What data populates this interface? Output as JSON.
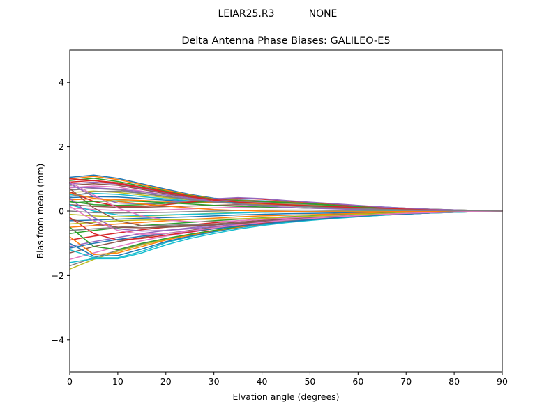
{
  "figure": {
    "suptitle_left": "LEIAR25.R3",
    "suptitle_right": "NONE"
  },
  "chart_data": {
    "type": "line",
    "title": "Delta Antenna Phase Biases: GALILEO-E5",
    "xlabel": "Elvation angle (degrees)",
    "ylabel": "Bias from mean (mm)",
    "xlim": [
      0,
      90
    ],
    "ylim": [
      -5,
      5
    ],
    "xticks": [
      0,
      10,
      20,
      30,
      40,
      50,
      60,
      70,
      80,
      90
    ],
    "yticks": [
      -4,
      -2,
      0,
      2,
      4
    ],
    "ytick_labels": [
      "−4",
      "−2",
      "0",
      "2",
      "4"
    ],
    "grid": false,
    "legend": "none",
    "colors": [
      "#1f77b4",
      "#ff7f0e",
      "#2ca02c",
      "#d62728",
      "#9467bd",
      "#8c564b",
      "#e377c2",
      "#7f7f7f",
      "#bcbd22",
      "#17becf"
    ],
    "x": [
      0,
      5,
      10,
      15,
      20,
      25,
      30,
      35,
      40,
      45,
      50,
      55,
      60,
      65,
      70,
      75,
      80,
      85,
      90
    ],
    "series": [
      {
        "values": [
          1.05,
          1.12,
          1.02,
          0.85,
          0.68,
          0.52,
          0.4,
          0.35,
          0.32,
          0.29,
          0.25,
          0.21,
          0.17,
          0.13,
          0.09,
          0.06,
          0.04,
          0.02,
          0.0
        ]
      },
      {
        "values": [
          1.0,
          1.08,
          0.98,
          0.82,
          0.65,
          0.5,
          0.38,
          0.34,
          0.31,
          0.28,
          0.24,
          0.2,
          0.16,
          0.12,
          0.09,
          0.06,
          0.04,
          0.02,
          0.0
        ]
      },
      {
        "values": [
          0.95,
          1.02,
          0.92,
          0.78,
          0.62,
          0.48,
          0.37,
          0.33,
          0.3,
          0.27,
          0.23,
          0.19,
          0.15,
          0.12,
          0.08,
          0.06,
          0.04,
          0.02,
          0.0
        ]
      },
      {
        "values": [
          0.9,
          0.95,
          0.88,
          0.74,
          0.6,
          0.46,
          0.36,
          0.32,
          0.29,
          0.26,
          0.22,
          0.18,
          0.15,
          0.11,
          0.08,
          0.05,
          0.03,
          0.02,
          0.0
        ]
      },
      {
        "values": [
          0.85,
          0.9,
          0.84,
          0.7,
          0.57,
          0.44,
          0.35,
          0.31,
          0.28,
          0.25,
          0.21,
          0.18,
          0.14,
          0.11,
          0.08,
          0.05,
          0.03,
          0.01,
          0.0
        ]
      },
      {
        "values": [
          0.8,
          0.85,
          0.8,
          0.67,
          0.54,
          0.42,
          0.33,
          0.3,
          0.27,
          0.24,
          0.21,
          0.17,
          0.14,
          0.1,
          0.07,
          0.05,
          0.03,
          0.01,
          0.0
        ]
      },
      {
        "values": [
          0.72,
          0.78,
          0.74,
          0.62,
          0.5,
          0.4,
          0.32,
          0.29,
          0.26,
          0.23,
          0.2,
          0.16,
          0.13,
          0.1,
          0.07,
          0.05,
          0.03,
          0.01,
          0.0
        ]
      },
      {
        "values": [
          0.65,
          0.7,
          0.66,
          0.56,
          0.46,
          0.37,
          0.3,
          0.28,
          0.25,
          0.22,
          0.19,
          0.16,
          0.13,
          0.09,
          0.07,
          0.04,
          0.03,
          0.01,
          0.0
        ]
      },
      {
        "values": [
          0.58,
          0.62,
          0.58,
          0.5,
          0.42,
          0.35,
          0.29,
          0.27,
          0.24,
          0.21,
          0.18,
          0.15,
          0.12,
          0.09,
          0.06,
          0.04,
          0.02,
          0.01,
          0.0
        ]
      },
      {
        "values": [
          0.5,
          0.55,
          0.52,
          0.45,
          0.38,
          0.32,
          0.28,
          0.26,
          0.23,
          0.2,
          0.17,
          0.14,
          0.11,
          0.08,
          0.06,
          0.04,
          0.02,
          0.01,
          0.0
        ]
      },
      {
        "values": [
          0.42,
          0.45,
          0.44,
          0.39,
          0.34,
          0.3,
          0.27,
          0.25,
          0.22,
          0.19,
          0.16,
          0.13,
          0.11,
          0.08,
          0.05,
          0.04,
          0.02,
          0.01,
          0.0
        ]
      },
      {
        "values": [
          0.35,
          0.38,
          0.36,
          0.33,
          0.3,
          0.28,
          0.26,
          0.24,
          0.21,
          0.18,
          0.15,
          0.13,
          0.1,
          0.08,
          0.05,
          0.03,
          0.02,
          0.01,
          0.0
        ]
      },
      {
        "values": [
          0.3,
          0.2,
          0.18,
          0.2,
          0.24,
          0.27,
          0.3,
          0.32,
          0.3,
          0.26,
          0.22,
          0.18,
          0.14,
          0.1,
          0.07,
          0.05,
          0.03,
          0.01,
          0.0
        ]
      },
      {
        "values": [
          0.6,
          0.3,
          0.15,
          0.15,
          0.2,
          0.28,
          0.36,
          0.4,
          0.37,
          0.32,
          0.27,
          0.22,
          0.17,
          0.12,
          0.08,
          0.05,
          0.03,
          0.01,
          0.0
        ]
      },
      {
        "values": [
          0.85,
          0.45,
          0.25,
          0.22,
          0.26,
          0.32,
          0.38,
          0.42,
          0.39,
          0.33,
          0.28,
          0.23,
          0.18,
          0.13,
          0.09,
          0.06,
          0.04,
          0.02,
          0.0
        ]
      },
      {
        "values": [
          0.2,
          0.15,
          0.12,
          0.12,
          0.14,
          0.16,
          0.18,
          0.2,
          0.19,
          0.17,
          0.14,
          0.12,
          0.09,
          0.07,
          0.05,
          0.03,
          0.02,
          0.01,
          0.0
        ]
      },
      {
        "values": [
          0.1,
          0.05,
          0.02,
          0.02,
          0.04,
          0.07,
          0.1,
          0.12,
          0.12,
          0.11,
          0.09,
          0.08,
          0.06,
          0.05,
          0.03,
          0.02,
          0.01,
          0.0,
          0.0
        ]
      },
      {
        "values": [
          0.0,
          -0.05,
          -0.06,
          -0.05,
          -0.04,
          -0.02,
          0.0,
          0.02,
          0.03,
          0.03,
          0.03,
          0.02,
          0.02,
          0.01,
          0.01,
          0.0,
          0.0,
          0.0,
          0.0
        ]
      },
      {
        "values": [
          -0.1,
          -0.15,
          -0.18,
          -0.16,
          -0.13,
          -0.1,
          -0.07,
          -0.05,
          -0.03,
          -0.02,
          -0.02,
          -0.01,
          -0.01,
          -0.01,
          0.0,
          0.0,
          0.0,
          0.0,
          0.0
        ]
      },
      {
        "values": [
          0.2,
          0.0,
          -0.12,
          -0.14,
          -0.12,
          -0.1,
          -0.08,
          -0.06,
          -0.04,
          -0.03,
          -0.02,
          -0.02,
          -0.01,
          -0.01,
          0.0,
          0.0,
          0.0,
          0.0,
          0.0
        ]
      },
      {
        "values": [
          -0.3,
          -0.28,
          -0.25,
          -0.22,
          -0.2,
          -0.18,
          -0.15,
          -0.12,
          -0.1,
          -0.08,
          -0.07,
          -0.06,
          -0.05,
          -0.04,
          -0.03,
          -0.02,
          -0.01,
          -0.01,
          0.0
        ]
      },
      {
        "values": [
          -0.5,
          -0.45,
          -0.4,
          -0.35,
          -0.3,
          -0.26,
          -0.22,
          -0.18,
          -0.15,
          -0.13,
          -0.11,
          -0.09,
          -0.07,
          -0.05,
          -0.04,
          -0.03,
          -0.02,
          -0.01,
          0.0
        ]
      },
      {
        "values": [
          -0.7,
          -0.6,
          -0.52,
          -0.45,
          -0.4,
          -0.35,
          -0.3,
          -0.25,
          -0.21,
          -0.18,
          -0.15,
          -0.12,
          -0.1,
          -0.07,
          -0.05,
          -0.04,
          -0.02,
          -0.01,
          0.0
        ]
      },
      {
        "values": [
          -0.9,
          -0.78,
          -0.68,
          -0.58,
          -0.5,
          -0.43,
          -0.36,
          -0.3,
          -0.25,
          -0.21,
          -0.17,
          -0.14,
          -0.11,
          -0.08,
          -0.06,
          -0.04,
          -0.02,
          -0.01,
          0.0
        ]
      },
      {
        "values": [
          -1.1,
          -0.95,
          -0.82,
          -0.7,
          -0.6,
          -0.52,
          -0.44,
          -0.37,
          -0.31,
          -0.26,
          -0.21,
          -0.17,
          -0.13,
          -0.1,
          -0.07,
          -0.05,
          -0.03,
          -0.01,
          0.0
        ]
      },
      {
        "values": [
          -1.3,
          -1.1,
          -0.95,
          -0.82,
          -0.7,
          -0.6,
          -0.5,
          -0.42,
          -0.35,
          -0.29,
          -0.24,
          -0.19,
          -0.15,
          -0.11,
          -0.08,
          -0.05,
          -0.03,
          -0.01,
          0.0
        ]
      },
      {
        "values": [
          -1.5,
          -1.3,
          -1.1,
          -0.92,
          -0.78,
          -0.66,
          -0.55,
          -0.46,
          -0.38,
          -0.31,
          -0.25,
          -0.2,
          -0.16,
          -0.12,
          -0.08,
          -0.06,
          -0.03,
          -0.02,
          0.0
        ]
      },
      {
        "values": [
          -1.7,
          -1.45,
          -1.22,
          -1.02,
          -0.86,
          -0.72,
          -0.6,
          -0.49,
          -0.4,
          -0.33,
          -0.27,
          -0.21,
          -0.17,
          -0.12,
          -0.09,
          -0.06,
          -0.04,
          -0.02,
          0.0
        ]
      },
      {
        "values": [
          -1.8,
          -1.5,
          -1.25,
          -1.05,
          -0.88,
          -0.74,
          -0.62,
          -0.5,
          -0.41,
          -0.34,
          -0.27,
          -0.22,
          -0.17,
          -0.13,
          -0.09,
          -0.06,
          -0.04,
          -0.02,
          0.0
        ]
      },
      {
        "values": [
          -1.2,
          -1.45,
          -1.45,
          -1.25,
          -0.98,
          -0.8,
          -0.65,
          -0.52,
          -0.42,
          -0.34,
          -0.27,
          -0.22,
          -0.17,
          -0.13,
          -0.09,
          -0.06,
          -0.04,
          -0.02,
          0.0
        ]
      },
      {
        "values": [
          -1.0,
          -1.4,
          -1.38,
          -1.18,
          -0.95,
          -0.78,
          -0.63,
          -0.51,
          -0.41,
          -0.33,
          -0.26,
          -0.21,
          -0.16,
          -0.12,
          -0.09,
          -0.06,
          -0.04,
          -0.02,
          0.0
        ]
      },
      {
        "values": [
          -0.8,
          -1.35,
          -1.3,
          -1.1,
          -0.9,
          -0.75,
          -0.61,
          -0.5,
          -0.4,
          -0.32,
          -0.26,
          -0.2,
          -0.16,
          -0.12,
          -0.08,
          -0.06,
          -0.03,
          -0.02,
          0.0
        ]
      },
      {
        "values": [
          -0.5,
          -1.1,
          -1.2,
          -1.0,
          -0.85,
          -0.72,
          -0.6,
          -0.48,
          -0.39,
          -0.32,
          -0.25,
          -0.2,
          -0.15,
          -0.11,
          -0.08,
          -0.05,
          -0.03,
          -0.02,
          0.0
        ]
      },
      {
        "values": [
          -0.2,
          -0.7,
          -0.9,
          -0.85,
          -0.75,
          -0.65,
          -0.55,
          -0.45,
          -0.37,
          -0.3,
          -0.24,
          -0.19,
          -0.15,
          -0.11,
          -0.08,
          -0.05,
          -0.03,
          -0.01,
          0.0
        ]
      },
      {
        "values": [
          0.4,
          -0.2,
          -0.55,
          -0.62,
          -0.6,
          -0.55,
          -0.48,
          -0.4,
          -0.33,
          -0.27,
          -0.22,
          -0.17,
          -0.13,
          -0.1,
          -0.07,
          -0.05,
          -0.03,
          -0.01,
          0.0
        ]
      },
      {
        "values": [
          0.7,
          0.1,
          -0.3,
          -0.45,
          -0.48,
          -0.45,
          -0.4,
          -0.34,
          -0.29,
          -0.24,
          -0.19,
          -0.15,
          -0.12,
          -0.09,
          -0.06,
          -0.04,
          -0.02,
          -0.01,
          0.0
        ]
      },
      {
        "values": [
          0.9,
          0.5,
          0.1,
          -0.15,
          -0.28,
          -0.33,
          -0.33,
          -0.3,
          -0.26,
          -0.22,
          -0.18,
          -0.14,
          -0.11,
          -0.08,
          -0.06,
          -0.04,
          -0.02,
          -0.01,
          0.0
        ]
      },
      {
        "values": [
          -0.6,
          -0.55,
          -0.5,
          -0.46,
          -0.44,
          -0.42,
          -0.4,
          -0.38,
          -0.35,
          -0.3,
          -0.25,
          -0.2,
          -0.15,
          -0.11,
          -0.08,
          -0.05,
          -0.03,
          -0.01,
          0.0
        ]
      },
      {
        "values": [
          -0.4,
          -0.35,
          -0.3,
          -0.28,
          -0.27,
          -0.26,
          -0.25,
          -0.24,
          -0.22,
          -0.19,
          -0.16,
          -0.13,
          -0.1,
          -0.08,
          -0.05,
          -0.04,
          -0.02,
          -0.01,
          0.0
        ]
      },
      {
        "values": [
          -1.6,
          -1.48,
          -1.48,
          -1.3,
          -1.05,
          -0.85,
          -0.7,
          -0.56,
          -0.45,
          -0.36,
          -0.29,
          -0.23,
          -0.18,
          -0.13,
          -0.09,
          -0.06,
          -0.04,
          -0.02,
          0.0
        ]
      },
      {
        "values": [
          -1.15,
          -1.0,
          -0.88,
          -0.78,
          -0.7,
          -0.62,
          -0.55,
          -0.47,
          -0.4,
          -0.33,
          -0.27,
          -0.21,
          -0.16,
          -0.12,
          -0.09,
          -0.06,
          -0.03,
          -0.02,
          0.0
        ]
      },
      {
        "values": [
          0.55,
          0.4,
          0.3,
          0.22,
          0.16,
          0.1,
          0.05,
          0.02,
          0.0,
          -0.01,
          -0.02,
          -0.02,
          -0.02,
          -0.02,
          -0.01,
          -0.01,
          0.0,
          0.0,
          0.0
        ]
      },
      {
        "values": [
          0.25,
          0.3,
          0.32,
          0.3,
          0.26,
          0.22,
          0.18,
          0.15,
          0.13,
          0.11,
          0.09,
          0.08,
          0.06,
          0.05,
          0.03,
          0.02,
          0.01,
          0.0,
          0.0
        ]
      },
      {
        "values": [
          1.0,
          0.95,
          0.85,
          0.72,
          0.58,
          0.45,
          0.34,
          0.28,
          0.24,
          0.2,
          0.17,
          0.14,
          0.11,
          0.08,
          0.06,
          0.04,
          0.02,
          0.01,
          0.0
        ]
      },
      {
        "values": [
          0.75,
          0.72,
          0.68,
          0.6,
          0.5,
          0.4,
          0.3,
          0.22,
          0.16,
          0.12,
          0.09,
          0.07,
          0.05,
          0.04,
          0.03,
          0.02,
          0.01,
          0.0,
          0.0
        ]
      },
      {
        "values": [
          -0.25,
          -0.4,
          -0.5,
          -0.52,
          -0.5,
          -0.47,
          -0.43,
          -0.38,
          -0.33,
          -0.28,
          -0.23,
          -0.18,
          -0.14,
          -0.1,
          -0.07,
          -0.05,
          -0.03,
          -0.01,
          0.0
        ]
      },
      {
        "values": [
          0.15,
          -0.3,
          -0.6,
          -0.72,
          -0.7,
          -0.62,
          -0.52,
          -0.43,
          -0.35,
          -0.28,
          -0.23,
          -0.18,
          -0.14,
          -0.1,
          -0.07,
          -0.05,
          -0.03,
          -0.01,
          0.0
        ]
      },
      {
        "values": [
          0.45,
          0.6,
          0.62,
          0.55,
          0.45,
          0.36,
          0.28,
          0.23,
          0.19,
          0.16,
          0.13,
          0.1,
          0.08,
          0.06,
          0.04,
          0.03,
          0.02,
          0.01,
          0.0
        ]
      }
    ]
  }
}
